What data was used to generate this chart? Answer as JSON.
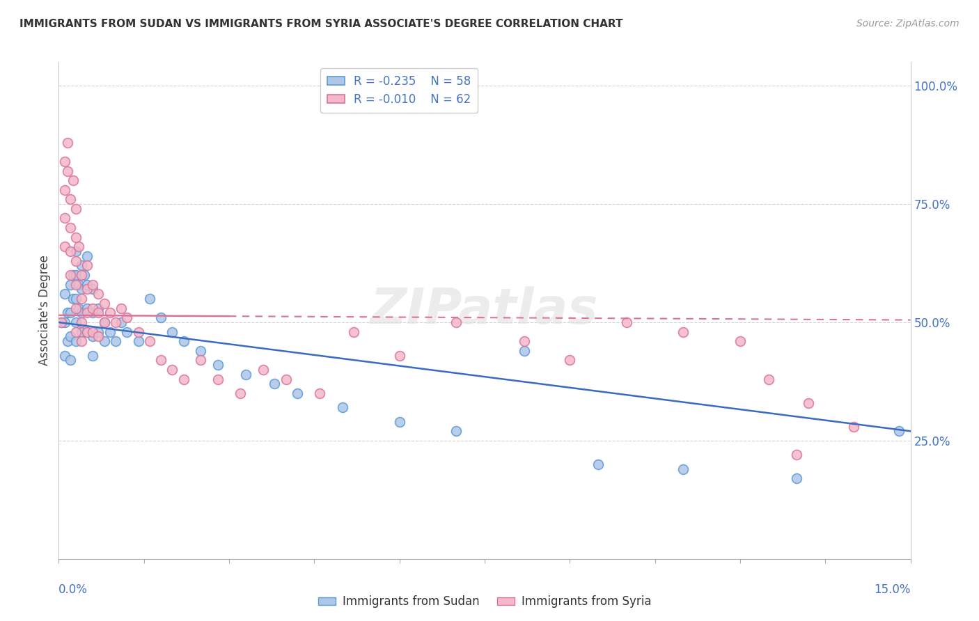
{
  "title": "IMMIGRANTS FROM SUDAN VS IMMIGRANTS FROM SYRIA ASSOCIATE'S DEGREE CORRELATION CHART",
  "source": "Source: ZipAtlas.com",
  "ylabel": "Associate's Degree",
  "yticklabels": [
    "25.0%",
    "50.0%",
    "75.0%",
    "100.0%"
  ],
  "yticks": [
    0.25,
    0.5,
    0.75,
    1.0
  ],
  "xlim": [
    0.0,
    0.15
  ],
  "ylim": [
    0.0,
    1.05
  ],
  "sudan_color": "#aec6e8",
  "sudan_edge_color": "#5b9bd5",
  "syria_color": "#f4b8c8",
  "syria_edge_color": "#d9739a",
  "trend_sudan_color": "#3a6bc4",
  "trend_syria_color": "#d9739a",
  "legend_r_sudan": "-0.235",
  "legend_n_sudan": "58",
  "legend_r_syria": "-0.010",
  "legend_n_syria": "62",
  "watermark": "ZIPatlas",
  "sudan_x": [
    0.0005,
    0.001,
    0.001,
    0.001,
    0.0015,
    0.0015,
    0.002,
    0.002,
    0.002,
    0.002,
    0.0025,
    0.0025,
    0.003,
    0.003,
    0.003,
    0.003,
    0.003,
    0.0035,
    0.0035,
    0.004,
    0.004,
    0.004,
    0.004,
    0.0045,
    0.005,
    0.005,
    0.005,
    0.005,
    0.006,
    0.006,
    0.006,
    0.006,
    0.007,
    0.007,
    0.008,
    0.008,
    0.009,
    0.01,
    0.011,
    0.012,
    0.014,
    0.016,
    0.018,
    0.02,
    0.022,
    0.025,
    0.028,
    0.033,
    0.038,
    0.042,
    0.05,
    0.06,
    0.07,
    0.082,
    0.095,
    0.11,
    0.13,
    0.148
  ],
  "sudan_y": [
    0.5,
    0.56,
    0.5,
    0.43,
    0.52,
    0.46,
    0.58,
    0.52,
    0.47,
    0.42,
    0.6,
    0.55,
    0.65,
    0.6,
    0.55,
    0.5,
    0.46,
    0.58,
    0.53,
    0.62,
    0.57,
    0.52,
    0.48,
    0.6,
    0.64,
    0.58,
    0.53,
    0.48,
    0.57,
    0.52,
    0.47,
    0.43,
    0.53,
    0.48,
    0.5,
    0.46,
    0.48,
    0.46,
    0.5,
    0.48,
    0.46,
    0.55,
    0.51,
    0.48,
    0.46,
    0.44,
    0.41,
    0.39,
    0.37,
    0.35,
    0.32,
    0.29,
    0.27,
    0.44,
    0.2,
    0.19,
    0.17,
    0.27
  ],
  "syria_x": [
    0.0005,
    0.001,
    0.001,
    0.001,
    0.001,
    0.0015,
    0.0015,
    0.002,
    0.002,
    0.002,
    0.002,
    0.0025,
    0.003,
    0.003,
    0.003,
    0.003,
    0.003,
    0.003,
    0.0035,
    0.004,
    0.004,
    0.004,
    0.004,
    0.005,
    0.005,
    0.005,
    0.005,
    0.006,
    0.006,
    0.006,
    0.007,
    0.007,
    0.007,
    0.008,
    0.008,
    0.009,
    0.01,
    0.011,
    0.012,
    0.014,
    0.016,
    0.018,
    0.02,
    0.022,
    0.025,
    0.028,
    0.032,
    0.036,
    0.04,
    0.046,
    0.052,
    0.06,
    0.07,
    0.082,
    0.09,
    0.1,
    0.11,
    0.12,
    0.125,
    0.13,
    0.132,
    0.14
  ],
  "syria_y": [
    0.5,
    0.84,
    0.78,
    0.72,
    0.66,
    0.88,
    0.82,
    0.76,
    0.7,
    0.65,
    0.6,
    0.8,
    0.74,
    0.68,
    0.63,
    0.58,
    0.53,
    0.48,
    0.66,
    0.6,
    0.55,
    0.5,
    0.46,
    0.62,
    0.57,
    0.52,
    0.48,
    0.58,
    0.53,
    0.48,
    0.56,
    0.52,
    0.47,
    0.54,
    0.5,
    0.52,
    0.5,
    0.53,
    0.51,
    0.48,
    0.46,
    0.42,
    0.4,
    0.38,
    0.42,
    0.38,
    0.35,
    0.4,
    0.38,
    0.35,
    0.48,
    0.43,
    0.5,
    0.46,
    0.42,
    0.5,
    0.48,
    0.46,
    0.38,
    0.22,
    0.33,
    0.28
  ],
  "sudan_trend_x": [
    0.0,
    0.15
  ],
  "sudan_trend_y": [
    0.5,
    0.27
  ],
  "syria_trend_x": [
    0.0,
    0.15
  ],
  "syria_trend_y": [
    0.515,
    0.505
  ]
}
